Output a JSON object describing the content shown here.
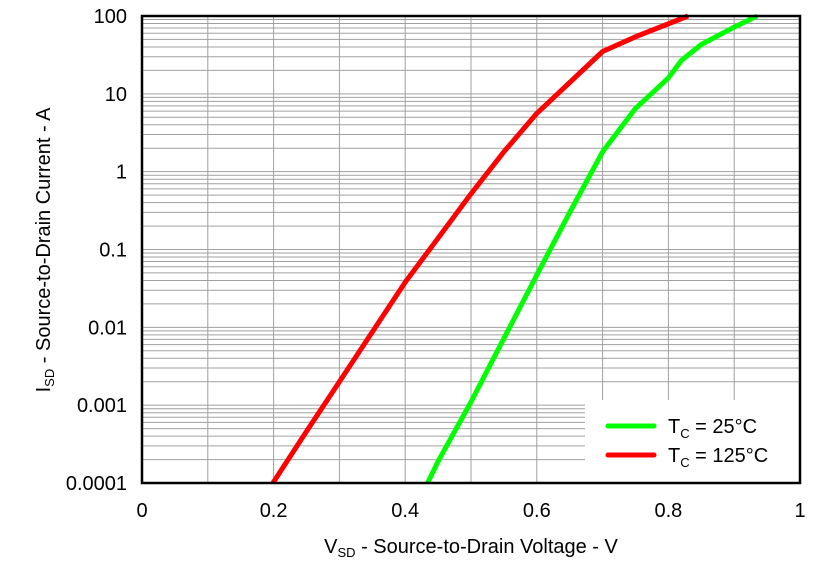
{
  "chart_data": {
    "type": "line",
    "title": "",
    "xlabel": {
      "main": "V",
      "sub": "SD",
      "rest": " - Source-to-Drain Voltage - V"
    },
    "ylabel": {
      "main": "I",
      "sub": "SD",
      "rest": " - Source-to-Drain Current - A"
    },
    "xlim": [
      0,
      1
    ],
    "ylim": [
      0.0001,
      100
    ],
    "yscale": "log",
    "grid": true,
    "legend_position": "bottom-right",
    "x_ticks": [
      "0",
      "0.2",
      "0.4",
      "0.6",
      "0.8",
      "1"
    ],
    "y_ticks": [
      "100",
      "10",
      "1",
      "0.1",
      "0.01",
      "0.001",
      "0.0001"
    ],
    "series": [
      {
        "name": "T_C = 25°C",
        "label": {
          "main": "T",
          "sub": "C",
          "rest": " = 25°C"
        },
        "color": "#00ff00",
        "x": [
          0.434,
          0.45,
          0.5,
          0.55,
          0.6,
          0.65,
          0.7,
          0.75,
          0.8,
          0.82,
          0.85,
          0.9,
          0.935
        ],
        "y": [
          0.0001,
          0.00019,
          0.0011,
          0.0072,
          0.047,
          0.3,
          1.8,
          6.5,
          16,
          27,
          43,
          72,
          100
        ]
      },
      {
        "name": "T_C = 125°C",
        "label": {
          "main": "T",
          "sub": "C",
          "rest": " = 125°C"
        },
        "color": "#ff0000",
        "x": [
          0.199,
          0.25,
          0.3,
          0.35,
          0.4,
          0.45,
          0.5,
          0.55,
          0.6,
          0.65,
          0.7,
          0.75,
          0.83
        ],
        "y": [
          0.0001,
          0.00046,
          0.002,
          0.0087,
          0.038,
          0.14,
          0.52,
          1.8,
          5.6,
          14,
          35,
          54,
          100
        ]
      }
    ]
  }
}
